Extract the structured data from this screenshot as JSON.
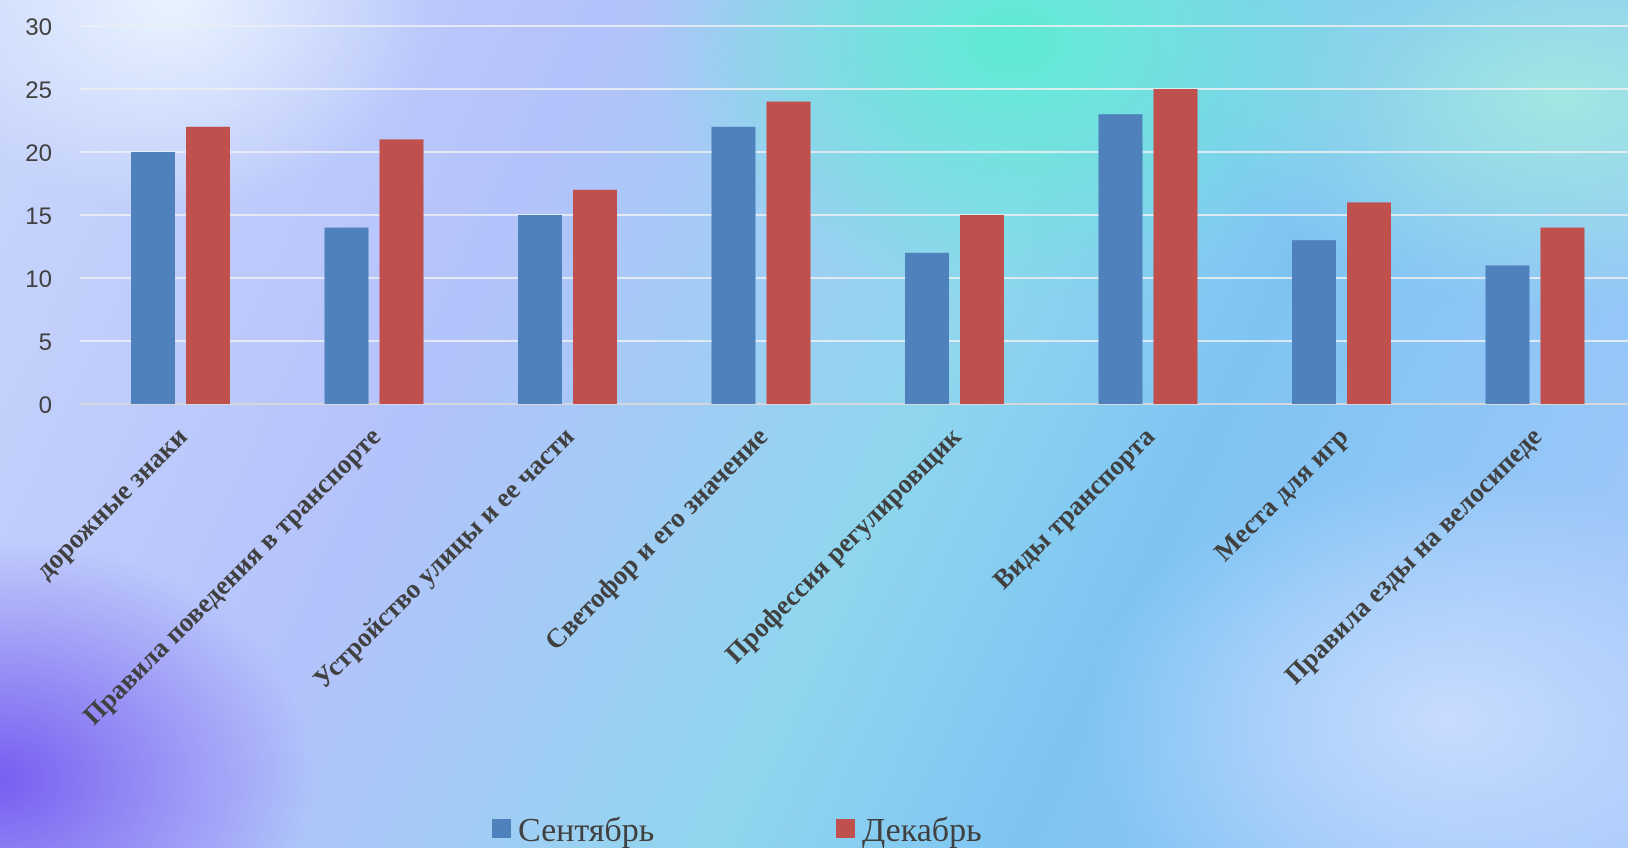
{
  "chart_data": {
    "type": "bar",
    "title": "",
    "xlabel": "",
    "ylabel": "",
    "ylim": [
      0,
      30
    ],
    "yticks": [
      0,
      5,
      10,
      15,
      20,
      25,
      30
    ],
    "grid": true,
    "legend_position": "bottom",
    "categories": [
      "дорожные знаки",
      "Правила поведения в транспорте",
      "Устройство улицы и ее части",
      "Светофор и его значение",
      "Профессия регулировщик",
      "Виды транспорта",
      "Места для игр",
      "Правила езды на велосипеде"
    ],
    "series": [
      {
        "name": "Сентябрь",
        "color": "#4f81bd",
        "values": [
          20,
          14,
          15,
          22,
          12,
          23,
          13,
          11
        ]
      },
      {
        "name": "Декабрь",
        "color": "#c0504d",
        "values": [
          22,
          21,
          17,
          24,
          15,
          25,
          16,
          14
        ]
      }
    ]
  }
}
